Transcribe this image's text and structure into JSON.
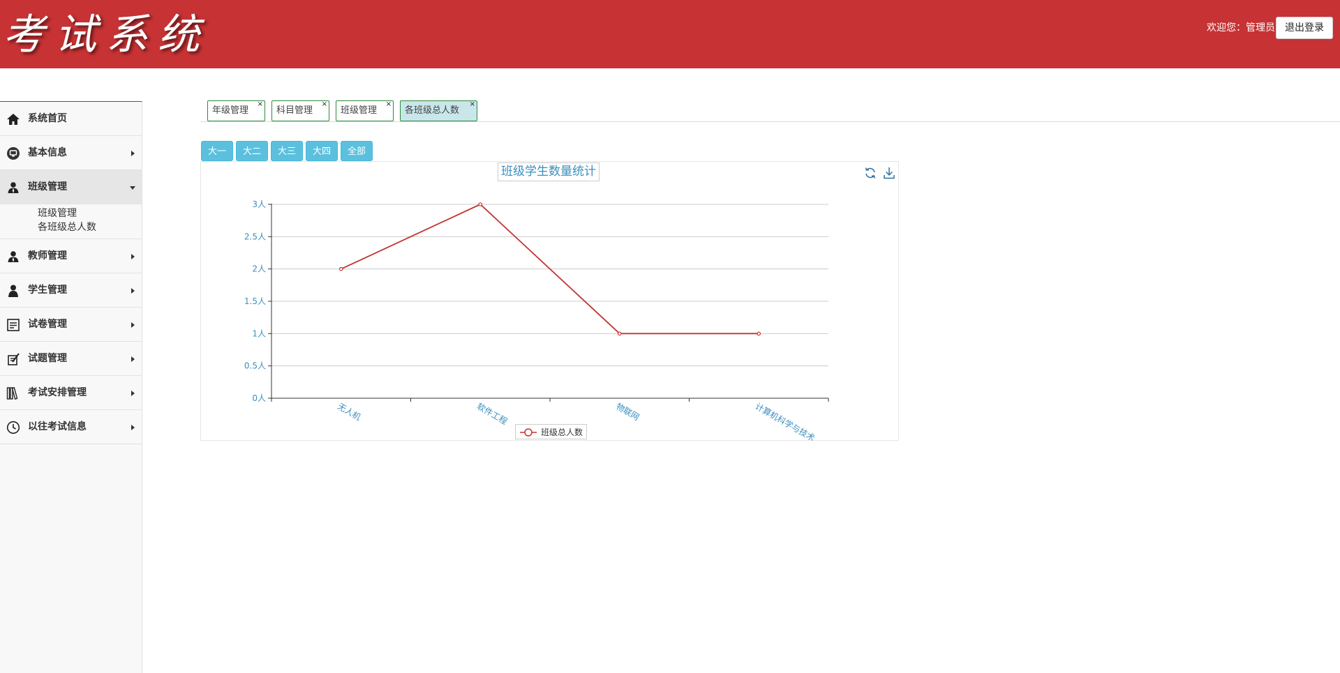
{
  "header": {
    "title": "考试系统",
    "welcome": "欢迎您：管理员",
    "logout_label": "退出登录"
  },
  "sidebar": {
    "items": [
      {
        "label": "系统首页",
        "icon": "home-icon",
        "arrow": false
      },
      {
        "label": "基本信息",
        "icon": "monitor-icon",
        "arrow": true
      },
      {
        "label": "班级管理",
        "icon": "user-icon",
        "arrow": true,
        "expanded": true
      },
      {
        "label": "教师管理",
        "icon": "teacher-icon",
        "arrow": true
      },
      {
        "label": "学生管理",
        "icon": "student-icon",
        "arrow": true
      },
      {
        "label": "试卷管理",
        "icon": "paper-icon",
        "arrow": true
      },
      {
        "label": "试题管理",
        "icon": "question-icon",
        "arrow": true
      },
      {
        "label": "考试安排管理",
        "icon": "books-icon",
        "arrow": true
      },
      {
        "label": "以往考试信息",
        "icon": "clock-icon",
        "arrow": true
      }
    ],
    "class_submenu": [
      "班级管理",
      "各班级总人数"
    ]
  },
  "tabs": [
    {
      "label": "年级管理",
      "active": false
    },
    {
      "label": "科目管理",
      "active": false
    },
    {
      "label": "班级管理",
      "active": false
    },
    {
      "label": "各班级总人数",
      "active": true
    }
  ],
  "tab_close_glyph": "×",
  "grade_buttons": [
    "大一",
    "大二",
    "大三",
    "大四",
    "全部"
  ],
  "colors": {
    "header_bg": "#c73234",
    "line": "#c23531",
    "axis_text": "#3a8fbf",
    "button": "#5bc0de",
    "tab_border": "#2d8a3e",
    "tab_active": "#c9e6ea"
  },
  "chart_data": {
    "type": "line",
    "title": "班级学生数量统计",
    "categories": [
      "无人机",
      "软件工程",
      "物联网",
      "计算机科学与技术"
    ],
    "series": [
      {
        "name": "班级总人数",
        "values": [
          2,
          3,
          1,
          1
        ]
      }
    ],
    "ylim": [
      0,
      3
    ],
    "yticks": [
      0,
      0.5,
      1,
      1.5,
      2,
      2.5,
      3
    ],
    "y_unit": "人",
    "grid": true,
    "legend": "bottom-center",
    "toolbox": [
      "refresh-icon",
      "download-icon"
    ]
  }
}
